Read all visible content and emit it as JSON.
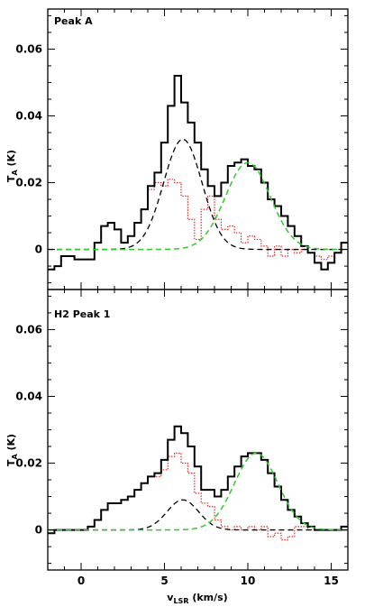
{
  "chart_data": {
    "type": "line",
    "xlabel": {
      "main": "v",
      "sub": "LSR",
      "unit": " (km/s)"
    },
    "ylabel": {
      "main": "T",
      "sub": "A",
      "unit": " (K)"
    },
    "xlim": [
      -2,
      16
    ],
    "x_ticks": [
      0,
      5,
      10,
      15
    ],
    "x_tick_labels": [
      "0",
      "5",
      "10",
      "15"
    ],
    "colors": {
      "observed": "#000000",
      "residual": "#e8261f",
      "gauss1": "#000000",
      "gauss2": "#2ec92e"
    },
    "panels": [
      {
        "label": "Peak A",
        "ylim": [
          -0.012,
          0.072
        ],
        "y_ticks": [
          0,
          0.02,
          0.04,
          0.06
        ],
        "y_tick_labels": [
          "0",
          "0.02",
          "0.04",
          "0.06"
        ],
        "bin_edges": [
          -2.0,
          -1.6,
          -1.2,
          -0.8,
          -0.4,
          0.0,
          0.4,
          0.8,
          1.2,
          1.6,
          2.0,
          2.4,
          2.8,
          3.2,
          3.6,
          4.0,
          4.4,
          4.8,
          5.2,
          5.6,
          6.0,
          6.4,
          6.8,
          7.2,
          7.6,
          8.0,
          8.4,
          8.8,
          9.2,
          9.6,
          10.0,
          10.4,
          10.8,
          11.2,
          11.6,
          12.0,
          12.4,
          12.8,
          13.2,
          13.6,
          14.0,
          14.4,
          14.8,
          15.2,
          15.6,
          16.0
        ],
        "observed": [
          -0.006,
          -0.005,
          -0.002,
          -0.002,
          -0.003,
          -0.003,
          -0.003,
          0.002,
          0.007,
          0.008,
          0.006,
          0.002,
          0.004,
          0.008,
          0.012,
          0.019,
          0.023,
          0.032,
          0.043,
          0.052,
          0.044,
          0.038,
          0.032,
          0.024,
          0.019,
          0.016,
          0.02,
          0.025,
          0.026,
          0.027,
          0.025,
          0.024,
          0.02,
          0.015,
          0.013,
          0.01,
          0.007,
          0.004,
          0.001,
          -0.001,
          -0.004,
          -0.006,
          -0.004,
          -0.001,
          0.002
        ],
        "residual": [
          -0.006,
          -0.005,
          -0.002,
          -0.002,
          -0.003,
          -0.003,
          -0.003,
          0.002,
          0.007,
          0.008,
          0.006,
          0.002,
          0.004,
          0.008,
          0.012,
          0.018,
          0.02,
          0.019,
          0.021,
          0.02,
          0.016,
          0.009,
          0.003,
          0.012,
          0.016,
          0.009,
          0.006,
          0.007,
          0.005,
          0.002,
          0.004,
          0.003,
          0.001,
          -0.002,
          0.001,
          -0.002,
          0.0,
          -0.001,
          0.0,
          -0.001,
          -0.002,
          -0.003,
          -0.002,
          -0.001,
          0.0
        ],
        "gauss1": {
          "amplitude": 0.033,
          "center": 6.1,
          "sigma": 1.15
        },
        "gauss2": {
          "amplitude": 0.026,
          "center": 10.0,
          "sigma": 1.35
        }
      },
      {
        "label": "H2 Peak 1",
        "ylim": [
          -0.012,
          0.072
        ],
        "y_ticks": [
          0,
          0.02,
          0.04,
          0.06
        ],
        "y_tick_labels": [
          "0",
          "0.02",
          "0.04",
          "0.06"
        ],
        "bin_edges": [
          -2.0,
          -1.6,
          -1.2,
          -0.8,
          -0.4,
          0.0,
          0.4,
          0.8,
          1.2,
          1.6,
          2.0,
          2.4,
          2.8,
          3.2,
          3.6,
          4.0,
          4.4,
          4.8,
          5.2,
          5.6,
          6.0,
          6.4,
          6.8,
          7.2,
          7.6,
          8.0,
          8.4,
          8.8,
          9.2,
          9.6,
          10.0,
          10.4,
          10.8,
          11.2,
          11.6,
          12.0,
          12.4,
          12.8,
          13.2,
          13.6,
          14.0,
          14.4,
          14.8,
          15.2,
          15.6,
          16.0
        ],
        "observed": [
          -0.001,
          0.0,
          0.0,
          0.0,
          0.0,
          0.0,
          0.001,
          0.003,
          0.006,
          0.008,
          0.008,
          0.009,
          0.01,
          0.012,
          0.014,
          0.016,
          0.017,
          0.021,
          0.027,
          0.031,
          0.029,
          0.025,
          0.019,
          0.012,
          0.012,
          0.01,
          0.012,
          0.016,
          0.019,
          0.022,
          0.023,
          0.023,
          0.021,
          0.017,
          0.013,
          0.009,
          0.006,
          0.004,
          0.002,
          0.001,
          0.0,
          0.0,
          0.0,
          0.0,
          0.001
        ],
        "residual": [
          -0.001,
          0.0,
          0.0,
          0.0,
          0.0,
          0.0,
          0.001,
          0.003,
          0.006,
          0.008,
          0.008,
          0.009,
          0.01,
          0.012,
          0.014,
          0.016,
          0.016,
          0.018,
          0.022,
          0.023,
          0.02,
          0.017,
          0.011,
          0.008,
          0.007,
          0.003,
          0.001,
          0.0,
          0.001,
          0.0,
          0.001,
          0.0,
          0.001,
          -0.002,
          -0.001,
          -0.003,
          -0.002,
          0.001,
          0.001,
          0.0,
          0.0,
          0.0,
          0.0,
          0.0,
          0.001
        ],
        "gauss1": {
          "amplitude": 0.009,
          "center": 6.1,
          "sigma": 0.95
        },
        "gauss2": {
          "amplitude": 0.023,
          "center": 10.5,
          "sigma": 1.3
        }
      }
    ]
  }
}
